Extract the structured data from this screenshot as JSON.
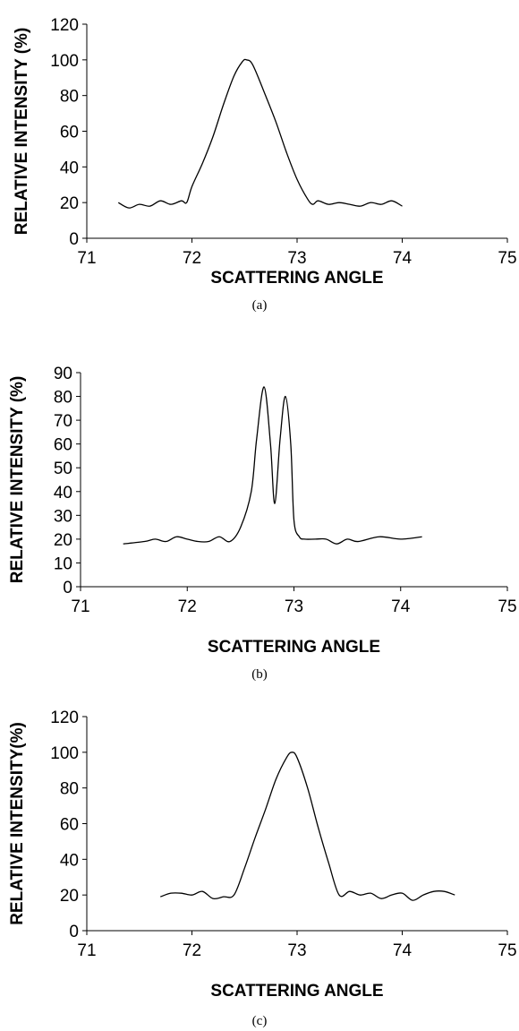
{
  "chart_data": [
    {
      "type": "line",
      "caption": "(a)",
      "xlabel": "SCATTERING ANGLE",
      "ylabel": "RELATIVE INTENSITY (%)",
      "xlim": [
        71,
        75
      ],
      "ylim": [
        0,
        120
      ],
      "xticks": [
        71,
        72,
        73,
        74,
        75
      ],
      "yticks": [
        0,
        20,
        40,
        60,
        80,
        100,
        120
      ],
      "grid": false,
      "series": [
        {
          "x": [
            71.3,
            71.4,
            71.5,
            71.6,
            71.7,
            71.8,
            71.9,
            71.95,
            72.0,
            72.1,
            72.2,
            72.3,
            72.4,
            72.48,
            72.52,
            72.58,
            72.7,
            72.8,
            72.9,
            73.0,
            73.1,
            73.15,
            73.2,
            73.3,
            73.4,
            73.5,
            73.6,
            73.7,
            73.8,
            73.9,
            74.0
          ],
          "y": [
            20,
            17,
            19,
            18,
            21,
            19,
            21,
            20,
            29,
            42,
            57,
            75,
            91,
            99,
            100,
            97,
            80,
            65,
            48,
            33,
            22,
            19,
            21,
            19,
            20,
            19,
            18,
            20,
            19,
            21,
            18
          ]
        }
      ]
    },
    {
      "type": "line",
      "caption": "(b)",
      "xlabel": "SCATTERING ANGLE",
      "ylabel": "RELATIVE INTENSITY (%)",
      "xlim": [
        71,
        75
      ],
      "ylim": [
        0,
        90
      ],
      "xticks": [
        71,
        72,
        73,
        74,
        75
      ],
      "yticks": [
        0,
        10,
        20,
        30,
        40,
        50,
        60,
        70,
        80,
        90
      ],
      "grid": false,
      "series": [
        {
          "x": [
            71.4,
            71.6,
            71.7,
            71.8,
            71.9,
            72.0,
            72.1,
            72.2,
            72.3,
            72.4,
            72.5,
            72.6,
            72.65,
            72.72,
            72.78,
            72.82,
            72.87,
            72.92,
            72.97,
            73.0,
            73.05,
            73.1,
            73.2,
            73.3,
            73.4,
            73.5,
            73.6,
            73.8,
            74.0,
            74.2
          ],
          "y": [
            18,
            19,
            20,
            19,
            21,
            20,
            19,
            19,
            21,
            19,
            25,
            40,
            62,
            84,
            60,
            35,
            62,
            80,
            60,
            28,
            21,
            20,
            20,
            20,
            18,
            20,
            19,
            21,
            20,
            21
          ]
        }
      ]
    },
    {
      "type": "line",
      "caption": "(c)",
      "xlabel": "SCATTERING ANGLE",
      "ylabel": "RELATIVE INTENSITY(%)",
      "xlim": [
        71,
        75
      ],
      "ylim": [
        0,
        120
      ],
      "xticks": [
        71,
        72,
        73,
        74,
        75
      ],
      "yticks": [
        0,
        20,
        40,
        60,
        80,
        100,
        120
      ],
      "grid": false,
      "series": [
        {
          "x": [
            71.7,
            71.8,
            71.9,
            72.0,
            72.1,
            72.2,
            72.3,
            72.4,
            72.5,
            72.6,
            72.7,
            72.8,
            72.9,
            72.95,
            73.0,
            73.1,
            73.2,
            73.3,
            73.4,
            73.5,
            73.6,
            73.7,
            73.8,
            73.9,
            74.0,
            74.1,
            74.2,
            74.3,
            74.4,
            74.5
          ],
          "y": [
            19,
            21,
            21,
            20,
            22,
            18,
            19,
            20,
            35,
            52,
            68,
            85,
            97,
            100,
            97,
            80,
            58,
            38,
            20,
            22,
            20,
            21,
            18,
            20,
            21,
            17,
            20,
            22,
            22,
            20
          ]
        }
      ]
    }
  ]
}
